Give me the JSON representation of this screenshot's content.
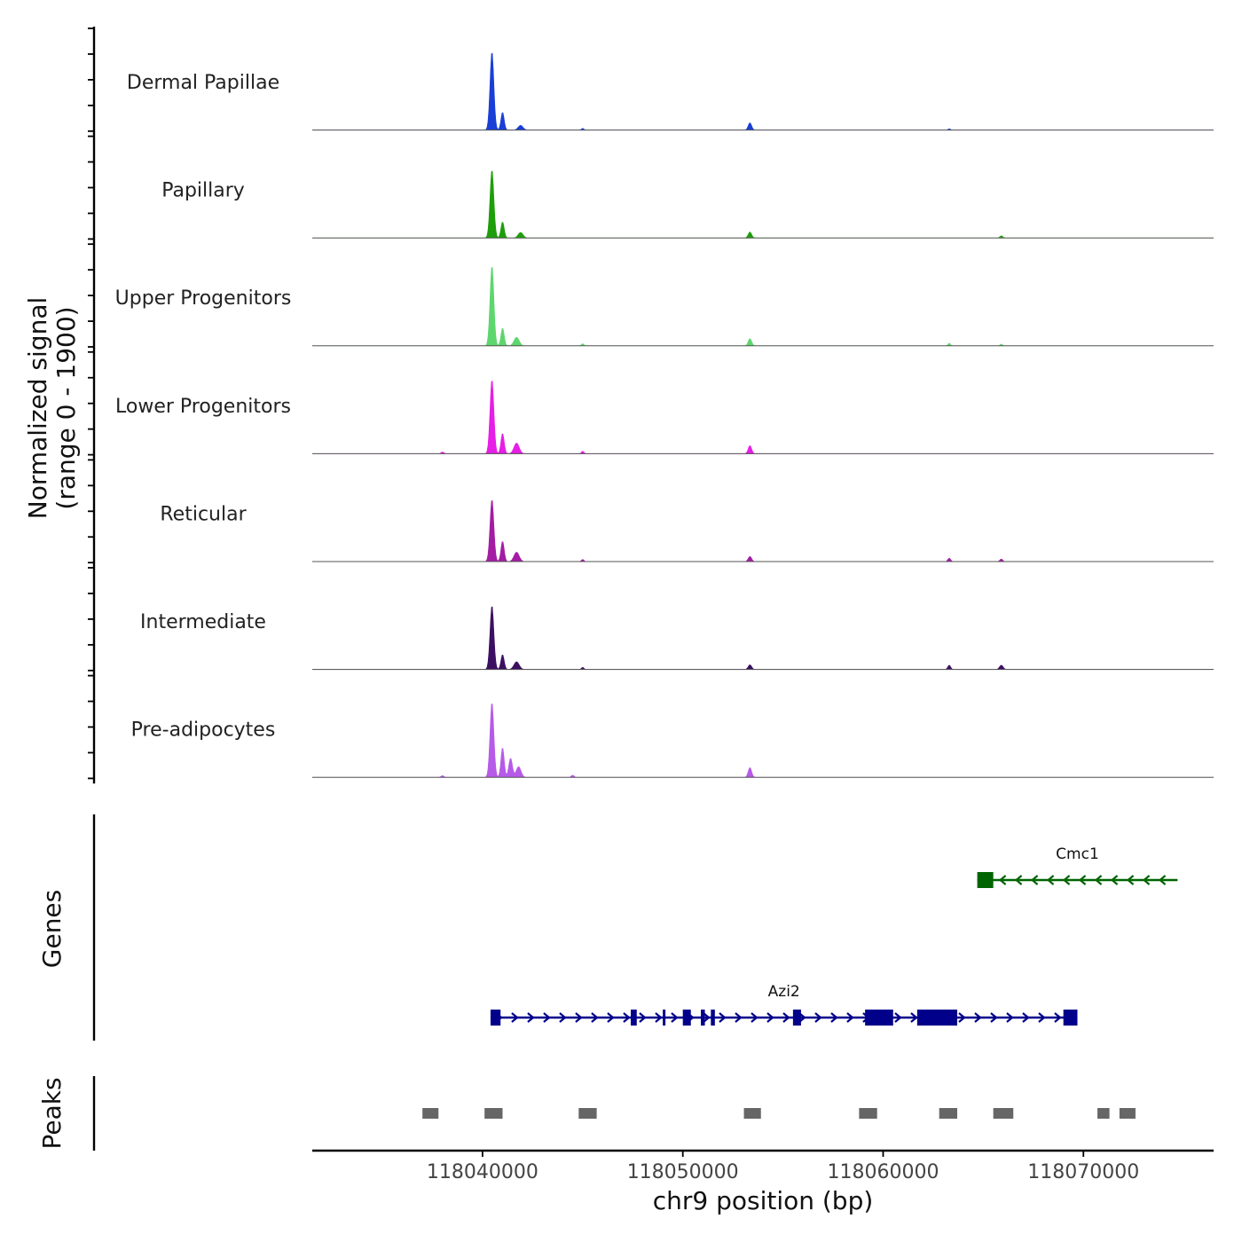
{
  "chart_data": {
    "type": "area",
    "title": "",
    "ylabel_line1": "Normalized signal",
    "ylabel_line2": "(range 0 - 1900)",
    "y_range": [
      0,
      1900
    ],
    "xlabel": "chr9 position (bp)",
    "x_range": [
      118031500,
      118076500
    ],
    "x_ticks": [
      118040000,
      118050000,
      118060000,
      118070000
    ],
    "x_tick_labels": [
      "118040000",
      "118050000",
      "118060000",
      "118070000"
    ],
    "peak_scale": 1900,
    "tracks": [
      {
        "name": "Dermal Papillae",
        "color": "#1a3fd6",
        "peaks": [
          [
            118040470,
            1840,
            95
          ],
          [
            118041000,
            420,
            80
          ],
          [
            118041900,
            110,
            120
          ],
          [
            118053350,
            170,
            85
          ],
          [
            118045000,
            40,
            60
          ],
          [
            118063300,
            30,
            60
          ]
        ]
      },
      {
        "name": "Papillary",
        "color": "#1e9e0a",
        "peaks": [
          [
            118040470,
            1600,
            95
          ],
          [
            118041000,
            380,
            80
          ],
          [
            118041900,
            130,
            120
          ],
          [
            118053350,
            140,
            85
          ],
          [
            118065900,
            50,
            70
          ]
        ]
      },
      {
        "name": "Upper Progenitors",
        "color": "#5ed66e",
        "peaks": [
          [
            118040470,
            1880,
            95
          ],
          [
            118041000,
            420,
            80
          ],
          [
            118041700,
            200,
            130
          ],
          [
            118053350,
            170,
            85
          ],
          [
            118045000,
            50,
            60
          ],
          [
            118063300,
            60,
            60
          ],
          [
            118065900,
            40,
            60
          ]
        ]
      },
      {
        "name": "Lower Progenitors",
        "color": "#e61ee6",
        "peaks": [
          [
            118040470,
            1740,
            95
          ],
          [
            118041000,
            480,
            80
          ],
          [
            118041700,
            250,
            130
          ],
          [
            118053350,
            190,
            85
          ],
          [
            118045000,
            60,
            60
          ],
          [
            118038000,
            40,
            70
          ]
        ]
      },
      {
        "name": "Reticular",
        "color": "#a31ca3",
        "peaks": [
          [
            118040470,
            1460,
            95
          ],
          [
            118041000,
            480,
            80
          ],
          [
            118041700,
            220,
            130
          ],
          [
            118053350,
            120,
            85
          ],
          [
            118063300,
            80,
            70
          ],
          [
            118065900,
            60,
            70
          ],
          [
            118045000,
            50,
            60
          ]
        ]
      },
      {
        "name": "Intermediate",
        "color": "#3c1060",
        "peaks": [
          [
            118040470,
            1500,
            95
          ],
          [
            118041000,
            350,
            80
          ],
          [
            118041700,
            180,
            130
          ],
          [
            118053350,
            110,
            85
          ],
          [
            118063300,
            100,
            70
          ],
          [
            118065900,
            100,
            90
          ],
          [
            118045000,
            50,
            60
          ]
        ]
      },
      {
        "name": "Pre-adipocytes",
        "color": "#b65ae8",
        "peaks": [
          [
            118040470,
            1760,
            95
          ],
          [
            118041000,
            700,
            80
          ],
          [
            118041400,
            450,
            90
          ],
          [
            118041800,
            250,
            120
          ],
          [
            118053350,
            230,
            85
          ],
          [
            118044500,
            50,
            70
          ],
          [
            118038000,
            40,
            70
          ]
        ]
      }
    ],
    "genes_label": "Genes",
    "genes": [
      {
        "name": "Cmc1",
        "strand": "-",
        "color": "#006400",
        "start": 118064700,
        "end": 118074700,
        "exons": [
          [
            118064700,
            118065500
          ]
        ]
      },
      {
        "name": "Azi2",
        "strand": "+",
        "color": "#00008b",
        "start": 118040400,
        "end": 118069700,
        "exons": [
          [
            118040400,
            118040900
          ],
          [
            118047400,
            118047700
          ],
          [
            118049000,
            118049100
          ],
          [
            118050000,
            118050400
          ],
          [
            118050900,
            118051100
          ],
          [
            118051400,
            118051600
          ],
          [
            118055500,
            118055900
          ],
          [
            118059100,
            118060500
          ],
          [
            118061700,
            118063700
          ],
          [
            118069000,
            118069700
          ]
        ]
      }
    ],
    "peaks_label": "Peaks",
    "peak_regions": [
      [
        118037000,
        118037800
      ],
      [
        118040100,
        118041000
      ],
      [
        118044800,
        118045700
      ],
      [
        118053050,
        118053900
      ],
      [
        118058800,
        118059700
      ],
      [
        118062800,
        118063700
      ],
      [
        118065500,
        118066500
      ],
      [
        118070700,
        118071300
      ],
      [
        118071800,
        118072600
      ]
    ]
  }
}
